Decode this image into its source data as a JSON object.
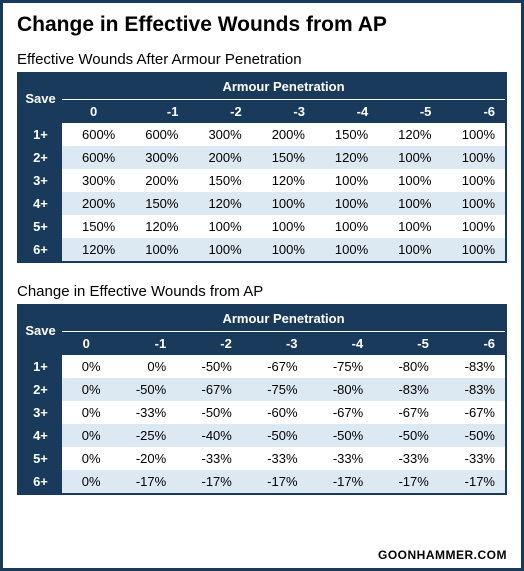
{
  "main_title": "Change in Effective Wounds from AP",
  "footer": "GOONHAMMER.COM",
  "colors": {
    "header_bg": "#1a3a5c",
    "header_fg": "#ffffff",
    "row_odd": "#ffffff",
    "row_even": "#dce8f2",
    "border": "#1a3a5c",
    "container_border": "#1a3a5c"
  },
  "table1": {
    "title": "Effective Wounds After Armour Penetration",
    "ap_label": "Armour Penetration",
    "save_label": "Save",
    "columns": [
      "0",
      "-1",
      "-2",
      "-3",
      "-4",
      "-5",
      "-6"
    ],
    "rows": [
      {
        "save": "1+",
        "cells": [
          "600%",
          "600%",
          "300%",
          "200%",
          "150%",
          "120%",
          "100%"
        ]
      },
      {
        "save": "2+",
        "cells": [
          "600%",
          "300%",
          "200%",
          "150%",
          "120%",
          "100%",
          "100%"
        ]
      },
      {
        "save": "3+",
        "cells": [
          "300%",
          "200%",
          "150%",
          "120%",
          "100%",
          "100%",
          "100%"
        ]
      },
      {
        "save": "4+",
        "cells": [
          "200%",
          "150%",
          "120%",
          "100%",
          "100%",
          "100%",
          "100%"
        ]
      },
      {
        "save": "5+",
        "cells": [
          "150%",
          "120%",
          "100%",
          "100%",
          "100%",
          "100%",
          "100%"
        ]
      },
      {
        "save": "6+",
        "cells": [
          "120%",
          "100%",
          "100%",
          "100%",
          "100%",
          "100%",
          "100%"
        ]
      }
    ]
  },
  "table2": {
    "title": "Change in Effective Wounds from AP",
    "ap_label": "Armour Penetration",
    "save_label": "Save",
    "columns": [
      "0",
      "-1",
      "-2",
      "-3",
      "-4",
      "-5",
      "-6"
    ],
    "rows": [
      {
        "save": "1+",
        "cells": [
          "0%",
          "0%",
          "-50%",
          "-67%",
          "-75%",
          "-80%",
          "-83%"
        ]
      },
      {
        "save": "2+",
        "cells": [
          "0%",
          "-50%",
          "-67%",
          "-75%",
          "-80%",
          "-83%",
          "-83%"
        ]
      },
      {
        "save": "3+",
        "cells": [
          "0%",
          "-33%",
          "-50%",
          "-60%",
          "-67%",
          "-67%",
          "-67%"
        ]
      },
      {
        "save": "4+",
        "cells": [
          "0%",
          "-25%",
          "-40%",
          "-50%",
          "-50%",
          "-50%",
          "-50%"
        ]
      },
      {
        "save": "5+",
        "cells": [
          "0%",
          "-20%",
          "-33%",
          "-33%",
          "-33%",
          "-33%",
          "-33%"
        ]
      },
      {
        "save": "6+",
        "cells": [
          "0%",
          "-17%",
          "-17%",
          "-17%",
          "-17%",
          "-17%",
          "-17%"
        ]
      }
    ]
  }
}
